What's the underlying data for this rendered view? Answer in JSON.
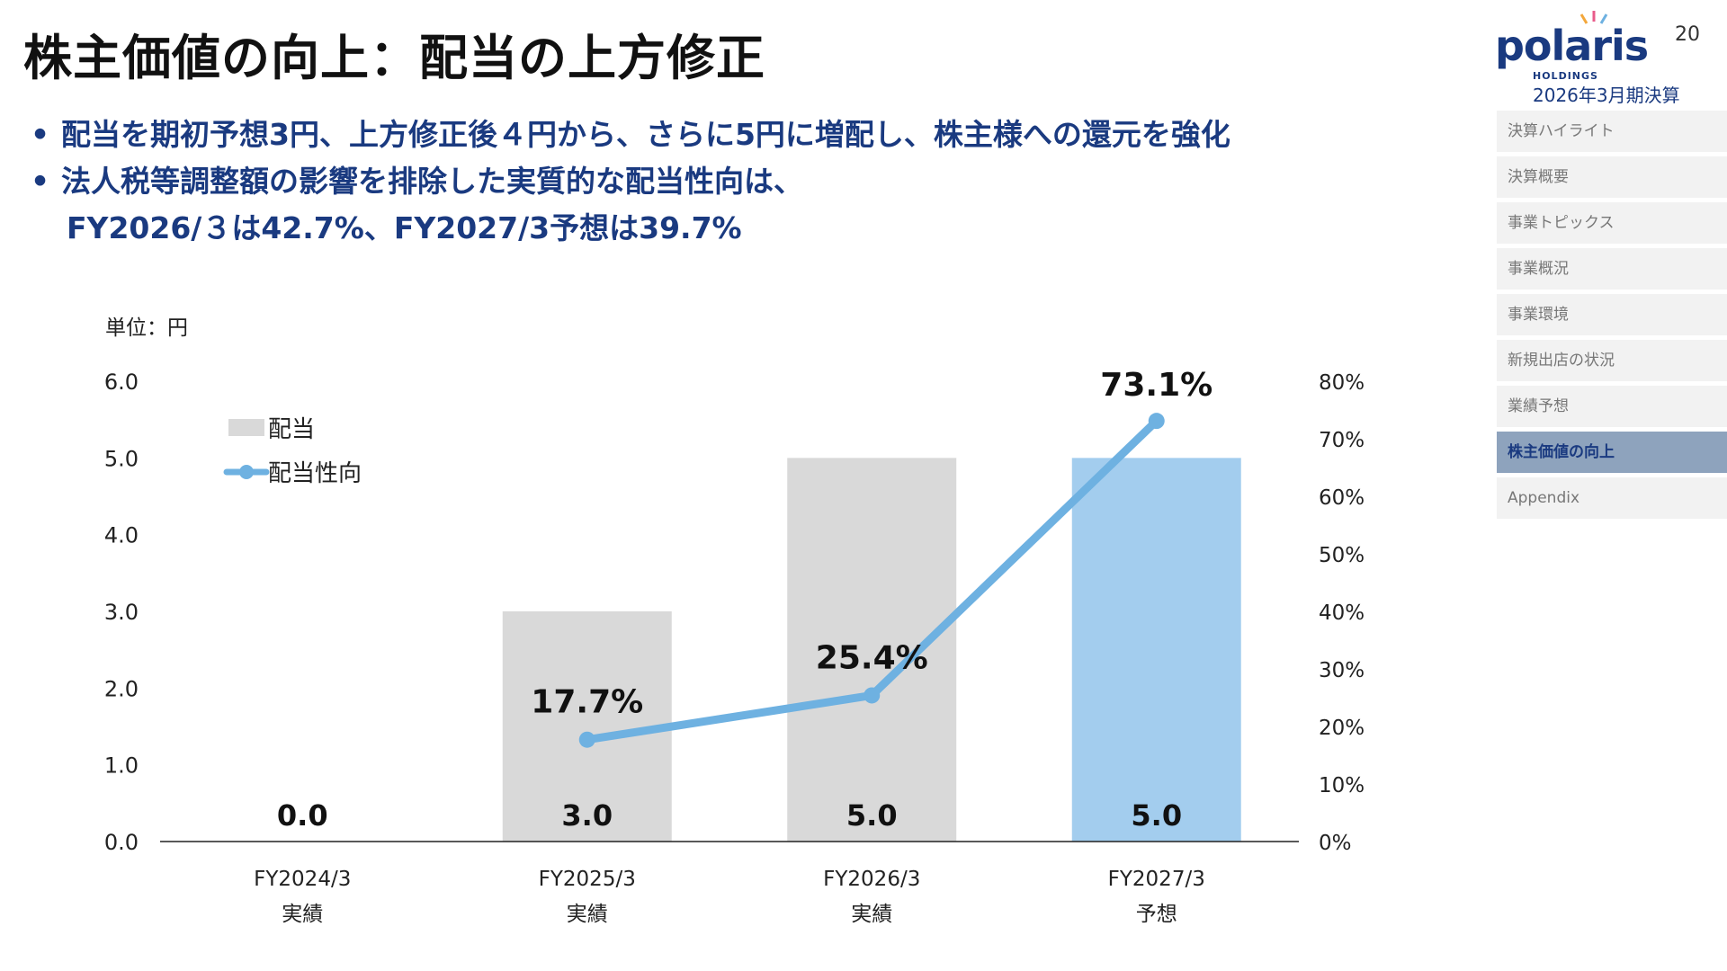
{
  "header": {
    "title": "株主価値の向上：配当の上方修正",
    "page_number": "20",
    "period": "2026年3月期決算",
    "logo_text": "polaris",
    "logo_sub": "HOLDINGS"
  },
  "bullets": [
    "配当を期初予想3円、上方修正後４円から、さらに5円に増配し、株主様への還元を強化",
    "法人税等調整額の影響を排除した実質的な配当性向は、",
    "FY2026/３は42.7%、FY2027/3予想は39.7%"
  ],
  "nav": {
    "items": [
      {
        "label": "決算ハイライト",
        "active": false
      },
      {
        "label": "決算概要",
        "active": false
      },
      {
        "label": "事業トピックス",
        "active": false
      },
      {
        "label": "事業概況",
        "active": false
      },
      {
        "label": "事業環境",
        "active": false
      },
      {
        "label": "新規出店の状況",
        "active": false
      },
      {
        "label": "業績予想",
        "active": false
      },
      {
        "label": "株主価値の向上",
        "active": true
      },
      {
        "label": "Appendix",
        "active": false
      }
    ]
  },
  "chart_data": {
    "type": "bar",
    "unit_label": "単位：円",
    "categories": [
      "FY2024/3",
      "FY2025/3",
      "FY2026/3",
      "FY2027/3"
    ],
    "category_sublabels": [
      "実績",
      "実績",
      "実績",
      "予想"
    ],
    "y_left": {
      "min": 0,
      "max": 6,
      "ticks": [
        "0.0",
        "1.0",
        "2.0",
        "3.0",
        "4.0",
        "5.0",
        "6.0"
      ]
    },
    "y_right": {
      "min": 0,
      "max": 80,
      "ticks": [
        "0%",
        "10%",
        "20%",
        "30%",
        "40%",
        "50%",
        "60%",
        "70%",
        "80%"
      ]
    },
    "series": [
      {
        "name": "配当",
        "kind": "bar",
        "values": [
          0.0,
          3.0,
          5.0,
          5.0
        ],
        "value_labels": [
          "0.0",
          "3.0",
          "5.0",
          "5.0"
        ],
        "colors": [
          "#d9d9d9",
          "#d9d9d9",
          "#d9d9d9",
          "#a3cdee"
        ]
      },
      {
        "name": "配当性向",
        "kind": "line",
        "axis": "right",
        "color": "#6eb1e1",
        "points": [
          {
            "category": "FY2025/3",
            "value": 17.7,
            "label": "17.7%"
          },
          {
            "category": "FY2026/3",
            "value": 25.4,
            "label": "25.4%"
          },
          {
            "category": "FY2027/3",
            "value": 73.1,
            "label": "73.1%"
          }
        ]
      }
    ],
    "legend": "top-left",
    "grid": false
  }
}
